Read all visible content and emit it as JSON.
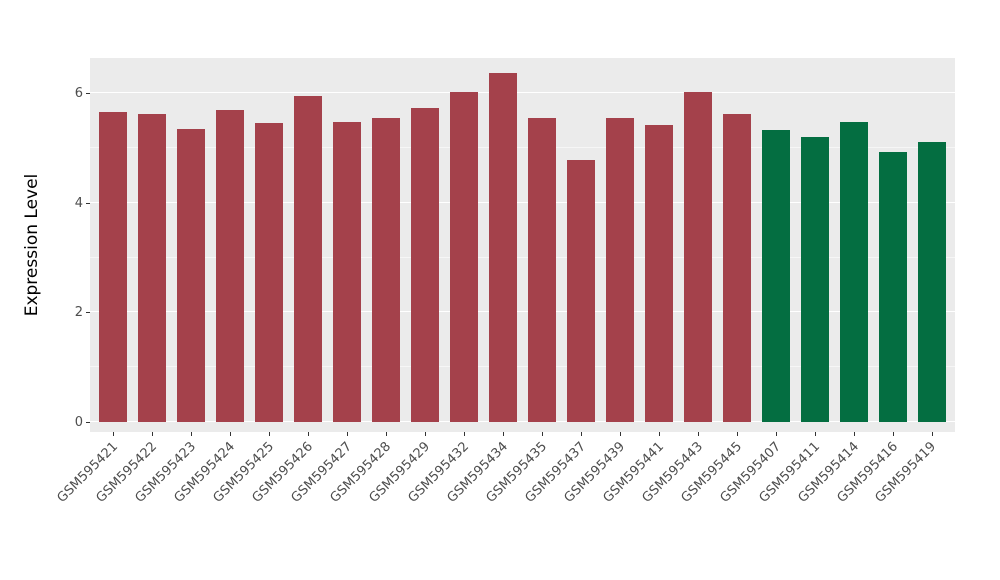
{
  "figure": {
    "background": "#FFFFFF",
    "panel_background": "#EBEBEB",
    "gridline_color": "#FFFFFF",
    "axis_text_color": "#4D4D4D",
    "axis_title_color": "#000000"
  },
  "chart_data": {
    "type": "bar",
    "title": "",
    "xlabel": "",
    "ylabel": "Expression Level",
    "ylim": [
      0,
      6.64
    ],
    "yticks": [
      0,
      2,
      4,
      6
    ],
    "minor_gridlines": [
      1,
      3,
      5
    ],
    "grid": true,
    "legend": false,
    "categories": [
      "GSM595421",
      "GSM595422",
      "GSM595423",
      "GSM595424",
      "GSM595425",
      "GSM595426",
      "GSM595427",
      "GSM595428",
      "GSM595429",
      "GSM595432",
      "GSM595434",
      "GSM595435",
      "GSM595437",
      "GSM595439",
      "GSM595441",
      "GSM595443",
      "GSM595445",
      "GSM595407",
      "GSM595411",
      "GSM595414",
      "GSM595416",
      "GSM595419"
    ],
    "values": [
      5.65,
      5.62,
      5.35,
      5.7,
      5.45,
      5.95,
      5.47,
      5.55,
      5.72,
      6.02,
      6.37,
      5.55,
      4.78,
      5.55,
      5.42,
      6.02,
      5.62,
      5.32,
      5.2,
      5.47,
      4.92,
      5.1
    ],
    "groups": [
      {
        "name": "samples-red",
        "color": "#A4414B",
        "from": 0,
        "to": 16
      },
      {
        "name": "samples-green",
        "color": "#046E41",
        "from": 17,
        "to": 21
      }
    ]
  }
}
